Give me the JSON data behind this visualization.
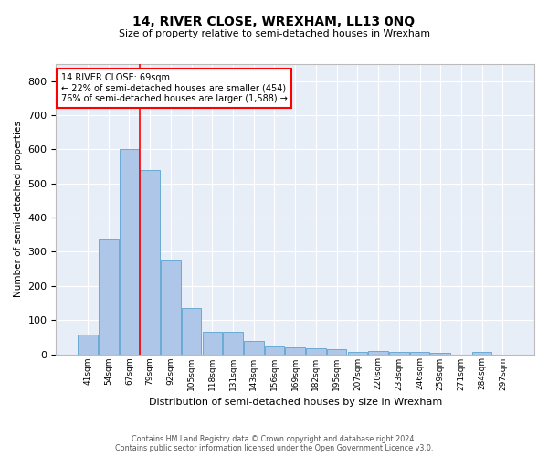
{
  "title": "14, RIVER CLOSE, WREXHAM, LL13 0NQ",
  "subtitle": "Size of property relative to semi-detached houses in Wrexham",
  "xlabel": "Distribution of semi-detached houses by size in Wrexham",
  "ylabel": "Number of semi-detached properties",
  "bar_color": "#aec6e8",
  "bar_edge_color": "#6aaad4",
  "background_color": "#e8eef7",
  "categories": [
    "41sqm",
    "54sqm",
    "67sqm",
    "79sqm",
    "92sqm",
    "105sqm",
    "118sqm",
    "131sqm",
    "143sqm",
    "156sqm",
    "169sqm",
    "182sqm",
    "195sqm",
    "207sqm",
    "220sqm",
    "233sqm",
    "246sqm",
    "259sqm",
    "271sqm",
    "284sqm",
    "297sqm"
  ],
  "values": [
    57,
    335,
    600,
    540,
    275,
    135,
    65,
    65,
    40,
    22,
    20,
    18,
    15,
    8,
    9,
    8,
    8,
    3,
    0,
    8,
    0
  ],
  "property_label": "14 RIVER CLOSE: 69sqm",
  "pct_smaller": 22,
  "n_smaller": 454,
  "pct_larger": 76,
  "n_larger": 1588,
  "vline_pos": 2.5,
  "ylim": [
    0,
    850
  ],
  "yticks": [
    0,
    100,
    200,
    300,
    400,
    500,
    600,
    700,
    800
  ],
  "footer_line1": "Contains HM Land Registry data © Crown copyright and database right 2024.",
  "footer_line2": "Contains public sector information licensed under the Open Government Licence v3.0."
}
